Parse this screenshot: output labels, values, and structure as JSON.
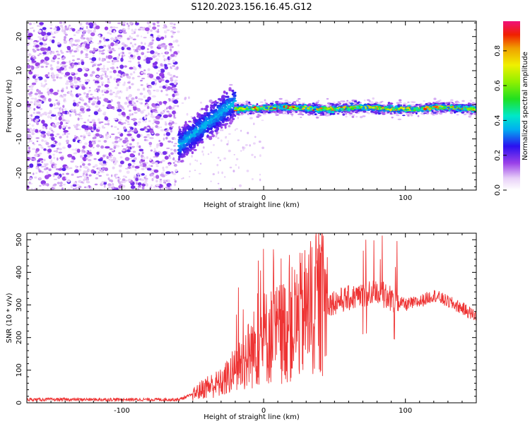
{
  "title": "S120.2023.156.16.45.G12",
  "chart_data": [
    {
      "type": "heatmap",
      "xlabel": "Height of straight line (km)",
      "ylabel": "Frequency (Hz)",
      "xlim": [
        -167,
        150
      ],
      "ylim": [
        -25,
        24.5
      ],
      "x_ticks": [
        -100,
        0,
        100
      ],
      "y_ticks": [
        -20,
        -10,
        0,
        10,
        20
      ],
      "colorbar": {
        "label": "Normalized spectral amplitude",
        "ticks": [
          0.0,
          0.2,
          0.4,
          0.6,
          0.8
        ],
        "range": [
          0.0,
          0.97
        ]
      },
      "regions": [
        {
          "x_start": -167,
          "x_end": -60,
          "description": "noise",
          "amplitude": [
            0.05,
            0.2
          ]
        },
        {
          "x_start": -60,
          "x_end": -20,
          "description": "ramp",
          "f_start": -12,
          "f_end": 1,
          "amplitude": [
            0.2,
            0.35
          ]
        },
        {
          "x_start": -20,
          "x_end": 150,
          "description": "carrier",
          "f": -1,
          "amplitude": [
            0.4,
            0.95
          ]
        }
      ]
    },
    {
      "type": "line",
      "xlabel": "Height of straight line (km)",
      "ylabel": "SNR (10 * v/v)",
      "xlim": [
        -167,
        150
      ],
      "ylim": [
        0,
        520
      ],
      "x_ticks": [
        -100,
        0,
        100
      ],
      "y_ticks": [
        0,
        100,
        200,
        300,
        400,
        500
      ],
      "color": "#ee3333",
      "series_envelope": [
        {
          "x": -167,
          "y": 10
        },
        {
          "x": -60,
          "y": 10
        },
        {
          "x": -50,
          "y": 25
        },
        {
          "x": -40,
          "y": 50
        },
        {
          "x": -30,
          "y": 60
        },
        {
          "x": -20,
          "y": 100
        },
        {
          "x": -10,
          "y": 150
        },
        {
          "x": 0,
          "y": 200
        },
        {
          "x": 10,
          "y": 210
        },
        {
          "x": 20,
          "y": 240
        },
        {
          "x": 30,
          "y": 280
        },
        {
          "x": 40,
          "y": 300
        },
        {
          "x": 50,
          "y": 310
        },
        {
          "x": 60,
          "y": 320
        },
        {
          "x": 70,
          "y": 330
        },
        {
          "x": 80,
          "y": 340
        },
        {
          "x": 90,
          "y": 320
        },
        {
          "x": 100,
          "y": 300
        },
        {
          "x": 110,
          "y": 310
        },
        {
          "x": 120,
          "y": 330
        },
        {
          "x": 130,
          "y": 310
        },
        {
          "x": 140,
          "y": 290
        },
        {
          "x": 150,
          "y": 265
        }
      ]
    }
  ]
}
